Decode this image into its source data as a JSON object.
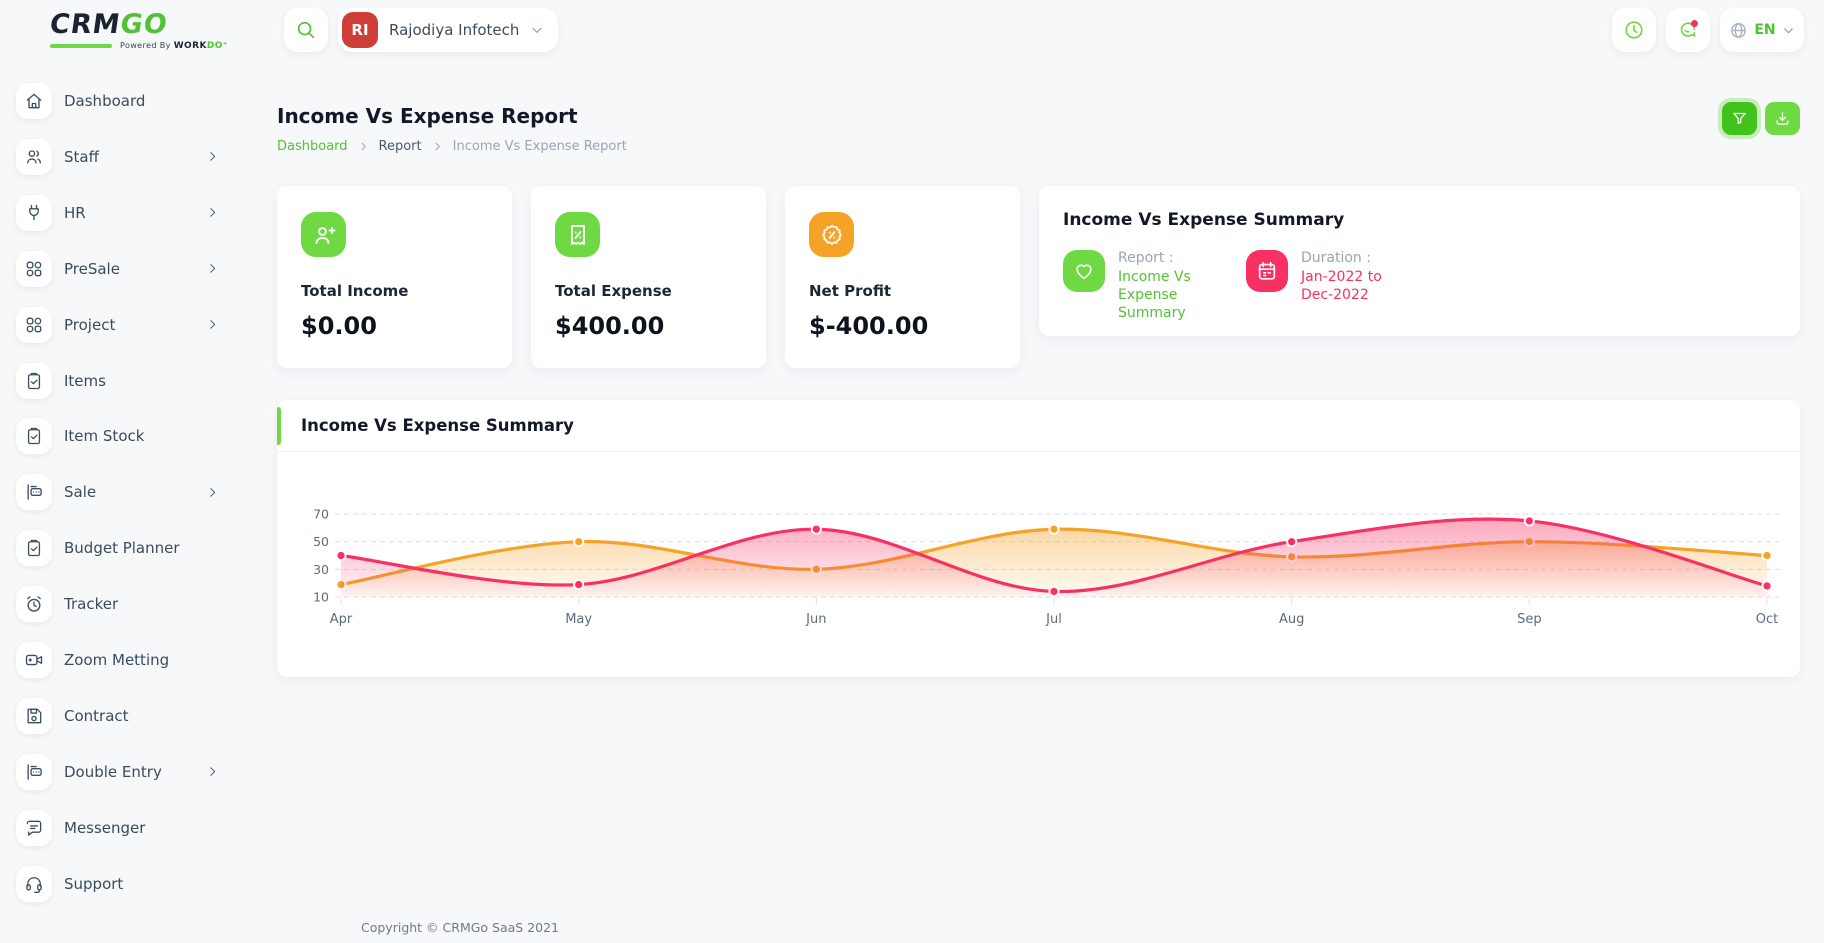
{
  "brand": {
    "crm": "CRM",
    "go": "GO",
    "powered_prefix": "Powered By ",
    "powered_work": "WORK",
    "powered_do": "DO"
  },
  "header": {
    "search_icon": "search-icon",
    "company": {
      "initials": "RI",
      "name": "Rajodiya Infotech",
      "avatar_color": "#cf3e36"
    },
    "clock_icon": "clock-icon",
    "messenger_icon": "chat-icon",
    "language": {
      "code": "EN",
      "globe_icon": "globe-icon"
    }
  },
  "sidebar": {
    "items": [
      {
        "label": "Dashboard",
        "icon": "home-icon",
        "has_children": false
      },
      {
        "label": "Staff",
        "icon": "users-icon",
        "has_children": true
      },
      {
        "label": "HR",
        "icon": "plug-icon",
        "has_children": true
      },
      {
        "label": "PreSale",
        "icon": "grid-icon",
        "has_children": true
      },
      {
        "label": "Project",
        "icon": "grid-icon",
        "has_children": true
      },
      {
        "label": "Items",
        "icon": "clipboard-icon",
        "has_children": false
      },
      {
        "label": "Item Stock",
        "icon": "clipboard-icon",
        "has_children": false
      },
      {
        "label": "Sale",
        "icon": "register-icon",
        "has_children": true
      },
      {
        "label": "Budget Planner",
        "icon": "clipboard-icon",
        "has_children": false
      },
      {
        "label": "Tracker",
        "icon": "alarm-icon",
        "has_children": false
      },
      {
        "label": "Zoom Metting",
        "icon": "video-icon",
        "has_children": false
      },
      {
        "label": "Contract",
        "icon": "floppy-icon",
        "has_children": false
      },
      {
        "label": "Double Entry",
        "icon": "register-icon",
        "has_children": true
      },
      {
        "label": "Messenger",
        "icon": "bubble-icon",
        "has_children": false
      },
      {
        "label": "Support",
        "icon": "headset-icon",
        "has_children": false
      }
    ]
  },
  "page": {
    "title": "Income Vs Expense Report",
    "breadcrumb": [
      "Dashboard",
      "Report",
      "Income Vs Expense Report"
    ],
    "actions": {
      "filter_icon": "funnel-icon",
      "download_icon": "download-icon"
    }
  },
  "stats": [
    {
      "label": "Total Income",
      "value": "$0.00",
      "icon": "user-plus-icon",
      "icon_bg": "#6fd943"
    },
    {
      "label": "Total Expense",
      "value": "$400.00",
      "icon": "receipt-percent-icon",
      "icon_bg": "#6fd943"
    },
    {
      "label": "Net Profit",
      "value": "$-400.00",
      "icon": "badge-percent-icon",
      "icon_bg": "#f5a228"
    }
  ],
  "summary": {
    "title": "Income Vs Expense Summary",
    "report_label": "Report :",
    "report_value": "Income Vs Expense Summary",
    "duration_label": "Duration :",
    "duration_value": "Jan-2022 to Dec-2022"
  },
  "chart_card": {
    "title": "Income Vs Expense Summary"
  },
  "chart_data": {
    "type": "area",
    "title": "Income Vs Expense Summary",
    "categories": [
      "Apr",
      "May",
      "Jun",
      "Jul",
      "Aug",
      "Sep",
      "Oct"
    ],
    "series": [
      {
        "name": "orange-series",
        "color": "#f5a228",
        "values": [
          19,
          50,
          30,
          59,
          39,
          50,
          40
        ]
      },
      {
        "name": "pink-series",
        "color": "#f73164",
        "values": [
          40,
          19,
          59,
          14,
          50,
          65,
          18
        ]
      }
    ],
    "ylim": [
      10,
      70
    ],
    "yticks": [
      70,
      50,
      30,
      10
    ],
    "grid": "horizontal-dashed",
    "legend": "none",
    "curve": "smooth",
    "markers": true
  },
  "footer": {
    "copyright": "Copyright © CRMGo SaaS 2021"
  },
  "colors": {
    "green": "#6fd943",
    "green_dark": "#41c31c",
    "pink": "#f73164",
    "orange": "#f5a228",
    "page_bg": "#f7f8fa"
  }
}
